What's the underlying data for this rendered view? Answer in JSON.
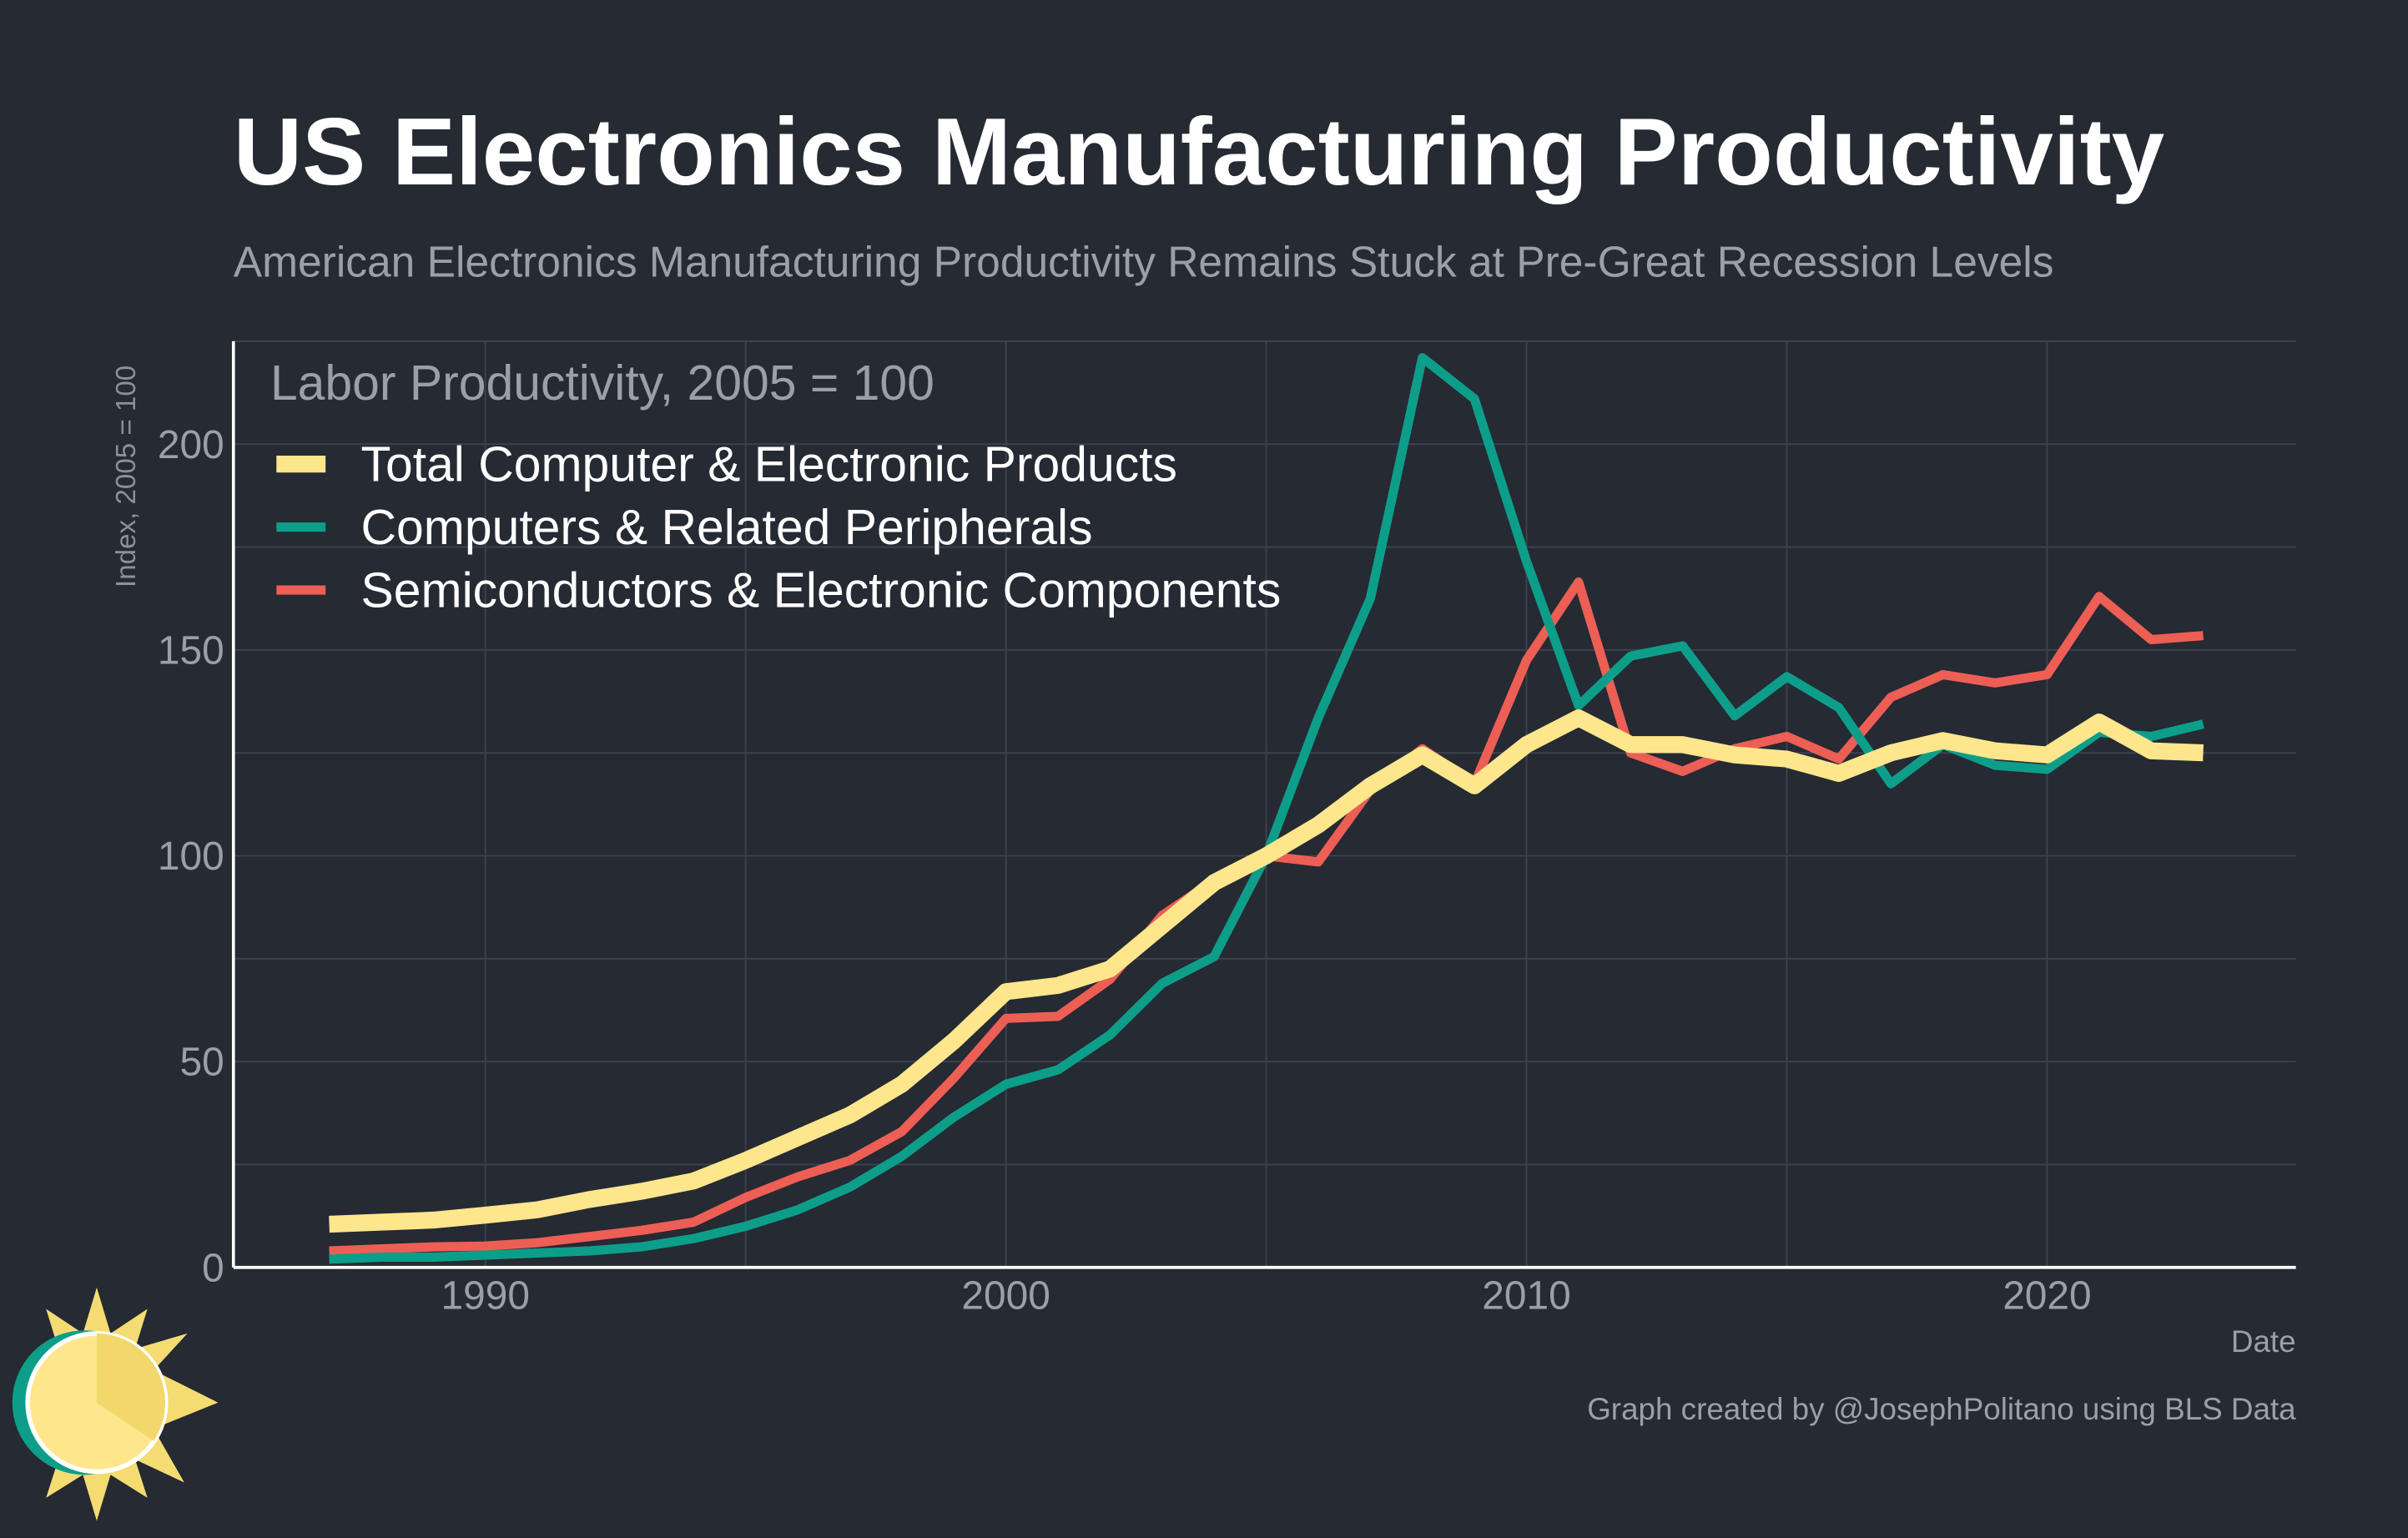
{
  "chart_data": {
    "type": "line",
    "title": "US Electronics Manufacturing Productivity",
    "subtitle": "American Electronics Manufacturing Productivity Remains Stuck at Pre-Great Recession Levels",
    "legend_title": "Labor Productivity, 2005 = 100",
    "y_label": "Index, 2005 = 100",
    "x_label": "Date",
    "source": "Graph created by @JosephPolitano using BLS Data",
    "x": [
      1987,
      1988,
      1989,
      1990,
      1991,
      1992,
      1993,
      1994,
      1995,
      1996,
      1997,
      1998,
      1999,
      2000,
      2001,
      2002,
      2003,
      2004,
      2005,
      2006,
      2007,
      2008,
      2009,
      2010,
      2011,
      2012,
      2013,
      2014,
      2015,
      2016,
      2017,
      2018,
      2019,
      2020,
      2021,
      2022,
      2023
    ],
    "series": [
      {
        "name": "Total Computer & Electronic Products",
        "color": "#fde68c",
        "values": [
          10.5,
          11,
          11.5,
          12.7,
          14,
          16.5,
          18.5,
          21,
          26,
          31.5,
          37,
          44.5,
          55,
          67,
          68.5,
          72.5,
          83,
          93.5,
          100,
          107.5,
          117,
          124.5,
          117,
          127,
          133.5,
          127,
          127,
          124.5,
          123.5,
          120,
          125,
          128,
          125.5,
          124.5,
          132.5,
          125.5,
          125
        ]
      },
      {
        "name": "Computers & Related Peripherals",
        "color": "#0d9e8a",
        "values": [
          2,
          2.5,
          2.5,
          3,
          3.5,
          4,
          5,
          7,
          10,
          14,
          19.5,
          27,
          36.5,
          44.5,
          48,
          56.5,
          69,
          75.5,
          100,
          133.5,
          162.5,
          221,
          211,
          171.5,
          136.5,
          148.5,
          151,
          134,
          143.5,
          136,
          117.5,
          127,
          122,
          121,
          130,
          129,
          132
        ]
      },
      {
        "name": "Semiconductors & Electronic Components",
        "color": "#ed5e55",
        "values": [
          4,
          4.5,
          5,
          5.2,
          6,
          7.5,
          9,
          11,
          17,
          22,
          26,
          33,
          46,
          60.5,
          61,
          70,
          85.5,
          94,
          100,
          98.5,
          116,
          126,
          117.5,
          147.5,
          166.5,
          125,
          120.5,
          126,
          129,
          123.5,
          138.5,
          144,
          142,
          144,
          163,
          152.5,
          153.5
        ]
      }
    ],
    "xlim": [
      1985.16,
      2024.78
    ],
    "xticks": [
      1990,
      2000,
      2010,
      2020
    ],
    "ylim": [
      0,
      225
    ],
    "yticks": [
      0,
      50,
      100,
      150,
      200
    ],
    "grid": true,
    "legend_position": "upper-left"
  }
}
